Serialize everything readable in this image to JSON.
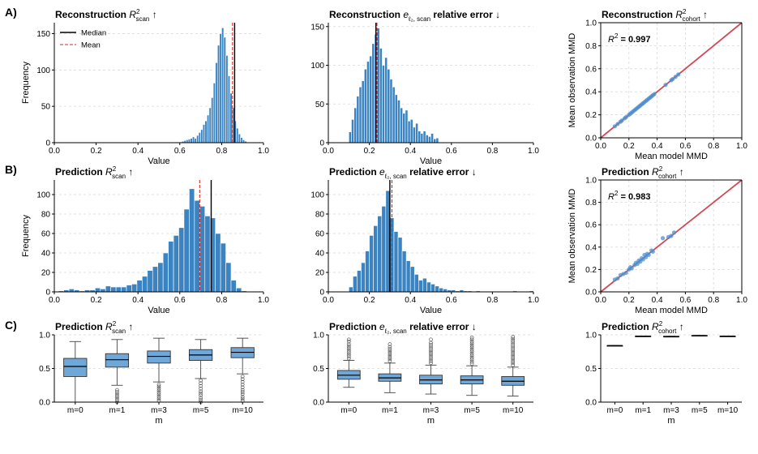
{
  "figure": {
    "row_labels": [
      "A)",
      "B)",
      "C)"
    ],
    "colors": {
      "bar": "#3b84c1",
      "bar_edge": "#ffffff",
      "median": "#000000",
      "mean": "#d62728",
      "fit": "#d04a57",
      "scatter": "#4c8fcf",
      "box": "#6fa8d8",
      "grid": "#d9d9d9"
    },
    "legend": {
      "median": "Median",
      "mean": "Mean"
    },
    "common": {
      "value_label": "Value",
      "frequency_label": "Frequency",
      "mmd_x_label": "Mean model MMD",
      "mmd_y_label": "Mean observation MMD",
      "m_label": "m"
    }
  },
  "chart_data": [
    {
      "id": "A1",
      "type": "bar",
      "panel": "histogram",
      "title": {
        "pre": "Reconstruction ",
        "sym": "R",
        "sup": "2",
        "sub": "scan",
        "post": "↑"
      },
      "xlabel": "Value",
      "ylabel": "Frequency",
      "xlim": [
        0,
        1
      ],
      "ylim": [
        0,
        165
      ],
      "xticks": [
        0,
        0.2,
        0.4,
        0.6,
        0.8,
        1.0
      ],
      "xtick_labels": [
        "0.0",
        "0.2",
        "0.4",
        "0.6",
        "0.8",
        "1.0"
      ],
      "yticks": [
        0,
        50,
        100,
        150
      ],
      "ytick_labels": [
        "0",
        "50",
        "100",
        "150"
      ],
      "bin_start": 0.58,
      "bin_width": 0.01,
      "values": [
        1,
        0,
        1,
        2,
        3,
        4,
        5,
        6,
        8,
        6,
        10,
        14,
        18,
        25,
        30,
        38,
        48,
        62,
        82,
        110,
        134,
        150,
        158,
        145,
        120,
        92,
        68,
        48,
        30,
        20,
        12,
        7,
        4,
        2
      ],
      "median": 0.862,
      "mean": 0.852,
      "legend": true,
      "grid": true
    },
    {
      "id": "A2",
      "type": "bar",
      "panel": "histogram",
      "title": {
        "pre": "Reconstruction ",
        "sym": "e",
        "sub": "ℓ₂, scan",
        "post": " relative error ↓"
      },
      "xlabel": "Value",
      "ylabel": "",
      "xlim": [
        0,
        1
      ],
      "ylim": [
        0,
        155
      ],
      "xticks": [
        0,
        0.2,
        0.4,
        0.6,
        0.8,
        1.0
      ],
      "xtick_labels": [
        "0.0",
        "0.2",
        "0.4",
        "0.6",
        "0.8",
        "1.0"
      ],
      "yticks": [
        0,
        50,
        100,
        150
      ],
      "ytick_labels": [
        "0",
        "50",
        "100",
        "150"
      ],
      "bin_start": 0.1,
      "bin_width": 0.0125,
      "values": [
        14,
        30,
        45,
        60,
        72,
        80,
        95,
        105,
        112,
        128,
        140,
        148,
        122,
        100,
        110,
        95,
        82,
        72,
        62,
        55,
        45,
        38,
        42,
        28,
        30,
        20,
        25,
        15,
        12,
        15,
        10,
        8,
        12,
        5,
        6
      ],
      "median": 0.232,
      "mean": 0.237,
      "legend": false,
      "grid": true
    },
    {
      "id": "A3",
      "type": "scatter",
      "panel": "scatter",
      "title": {
        "pre": "Reconstruction ",
        "sym": "R",
        "sup": "2",
        "sub": "cohort",
        "post": "↑"
      },
      "xlabel": "Mean model MMD",
      "ylabel": "Mean observation MMD",
      "xlim": [
        0,
        1
      ],
      "ylim": [
        0,
        1
      ],
      "xticks": [
        0,
        0.2,
        0.4,
        0.6,
        0.8,
        1.0
      ],
      "xtick_labels": [
        "0.0",
        "0.2",
        "0.4",
        "0.6",
        "0.8",
        "1.0"
      ],
      "yticks": [
        0,
        0.2,
        0.4,
        0.6,
        0.8,
        1.0
      ],
      "ytick_labels": [
        "0.0",
        "0.2",
        "0.4",
        "0.6",
        "0.8",
        "1.0"
      ],
      "annotation": {
        "label": "R",
        "sup": "2",
        "value": " = 0.997"
      },
      "fit": {
        "slope": 1.0,
        "intercept": 0.0
      },
      "x": [
        0.1,
        0.12,
        0.14,
        0.15,
        0.17,
        0.18,
        0.2,
        0.21,
        0.22,
        0.23,
        0.24,
        0.25,
        0.26,
        0.27,
        0.28,
        0.29,
        0.3,
        0.31,
        0.32,
        0.33,
        0.34,
        0.35,
        0.36,
        0.37,
        0.38,
        0.46,
        0.5,
        0.51,
        0.53,
        0.55
      ],
      "y": [
        0.1,
        0.12,
        0.14,
        0.15,
        0.17,
        0.18,
        0.2,
        0.21,
        0.22,
        0.23,
        0.24,
        0.25,
        0.26,
        0.27,
        0.28,
        0.29,
        0.3,
        0.31,
        0.32,
        0.33,
        0.34,
        0.35,
        0.36,
        0.37,
        0.38,
        0.46,
        0.5,
        0.51,
        0.53,
        0.55
      ],
      "grid": true
    },
    {
      "id": "B1",
      "type": "bar",
      "panel": "histogram",
      "title": {
        "pre": "Prediction ",
        "sym": "R",
        "sup": "2",
        "sub": "scan",
        "post": "↑"
      },
      "xlabel": "Value",
      "ylabel": "Frequency",
      "xlim": [
        0,
        1
      ],
      "ylim": [
        0,
        115
      ],
      "xticks": [
        0,
        0.2,
        0.4,
        0.6,
        0.8,
        1.0
      ],
      "xtick_labels": [
        "0.0",
        "0.2",
        "0.4",
        "0.6",
        "0.8",
        "1.0"
      ],
      "yticks": [
        0,
        20,
        40,
        60,
        80,
        100
      ],
      "ytick_labels": [
        "0",
        "20",
        "40",
        "60",
        "80",
        "100"
      ],
      "bin_start": 0.02,
      "bin_width": 0.025,
      "values": [
        1,
        2,
        3,
        2,
        1,
        2,
        2,
        4,
        3,
        6,
        5,
        5,
        5,
        7,
        8,
        12,
        16,
        22,
        26,
        30,
        40,
        52,
        58,
        66,
        85,
        106,
        94,
        88,
        78,
        76,
        60,
        50,
        30,
        12,
        4,
        1
      ],
      "median": 0.75,
      "mean": 0.695,
      "legend": false,
      "grid": true
    },
    {
      "id": "B2",
      "type": "bar",
      "panel": "histogram",
      "title": {
        "pre": "Prediction ",
        "sym": "e",
        "sub": "ℓ₂, scan",
        "post": " relative error ↓"
      },
      "xlabel": "Value",
      "ylabel": "",
      "xlim": [
        0,
        1
      ],
      "ylim": [
        0,
        115
      ],
      "xticks": [
        0,
        0.2,
        0.4,
        0.6,
        0.8,
        1.0
      ],
      "xtick_labels": [
        "0.0",
        "0.2",
        "0.4",
        "0.6",
        "0.8",
        "1.0"
      ],
      "yticks": [
        0,
        20,
        40,
        60,
        80,
        100
      ],
      "ytick_labels": [
        "0",
        "20",
        "40",
        "60",
        "80",
        "100"
      ],
      "bin_start": 0.1,
      "bin_width": 0.02,
      "values": [
        5,
        16,
        22,
        30,
        42,
        58,
        68,
        78,
        88,
        104,
        76,
        62,
        56,
        42,
        32,
        26,
        18,
        12,
        14,
        10,
        8,
        6,
        4,
        3,
        2,
        2,
        1,
        2,
        1,
        1,
        0,
        1,
        0,
        0,
        0,
        0,
        0,
        0,
        0,
        0,
        1,
        0,
        0,
        0,
        1
      ],
      "median": 0.3,
      "mean": 0.31,
      "legend": false,
      "grid": true
    },
    {
      "id": "B3",
      "type": "scatter",
      "panel": "scatter",
      "title": {
        "pre": "Prediction ",
        "sym": "R",
        "sup": "2",
        "sub": "cohort",
        "post": "↑"
      },
      "xlabel": "Mean model MMD",
      "ylabel": "Mean observation MMD",
      "xlim": [
        0,
        1
      ],
      "ylim": [
        0,
        1
      ],
      "xticks": [
        0,
        0.2,
        0.4,
        0.6,
        0.8,
        1.0
      ],
      "xtick_labels": [
        "0.0",
        "0.2",
        "0.4",
        "0.6",
        "0.8",
        "1.0"
      ],
      "yticks": [
        0,
        0.2,
        0.4,
        0.6,
        0.8,
        1.0
      ],
      "ytick_labels": [
        "0.0",
        "0.2",
        "0.4",
        "0.6",
        "0.8",
        "1.0"
      ],
      "annotation": {
        "label": "R",
        "sup": "2",
        "value": " = 0.983"
      },
      "fit": {
        "slope": 1.0,
        "intercept": 0.0
      },
      "x": [
        0.1,
        0.12,
        0.14,
        0.16,
        0.18,
        0.2,
        0.21,
        0.22,
        0.24,
        0.25,
        0.26,
        0.27,
        0.28,
        0.29,
        0.3,
        0.31,
        0.32,
        0.33,
        0.34,
        0.36,
        0.37,
        0.44,
        0.48,
        0.5,
        0.52
      ],
      "y": [
        0.11,
        0.12,
        0.15,
        0.16,
        0.17,
        0.2,
        0.22,
        0.21,
        0.24,
        0.26,
        0.25,
        0.28,
        0.27,
        0.3,
        0.29,
        0.33,
        0.31,
        0.34,
        0.33,
        0.37,
        0.36,
        0.48,
        0.49,
        0.5,
        0.53
      ],
      "grid": true
    },
    {
      "id": "C1",
      "type": "box",
      "panel": "box",
      "title": {
        "pre": "Prediction ",
        "sym": "R",
        "sup": "2",
        "sub": "scan",
        "post": "↑"
      },
      "xlabel": "m",
      "ylabel": "",
      "ylim": [
        0,
        1
      ],
      "yticks": [
        0,
        0.5,
        1.0
      ],
      "ytick_labels": [
        "0.0",
        "0.5",
        "1.0"
      ],
      "categories": [
        "m=0",
        "m=1",
        "m=3",
        "m=5",
        "m=10"
      ],
      "boxes": [
        {
          "whislo": 0.0,
          "q1": 0.38,
          "med": 0.53,
          "q3": 0.65,
          "whishi": 0.9,
          "outliers": []
        },
        {
          "whislo": 0.25,
          "q1": 0.52,
          "med": 0.63,
          "q3": 0.72,
          "whishi": 0.93,
          "outliers": [
            0.0,
            0.03,
            0.06,
            0.09,
            0.12,
            0.15,
            0.18
          ]
        },
        {
          "whislo": 0.3,
          "q1": 0.58,
          "med": 0.68,
          "q3": 0.76,
          "whishi": 0.95,
          "outliers": [
            0.02,
            0.05,
            0.08,
            0.11,
            0.14,
            0.17,
            0.2,
            0.23,
            0.26
          ]
        },
        {
          "whislo": 0.35,
          "q1": 0.62,
          "med": 0.7,
          "q3": 0.78,
          "whishi": 0.93,
          "outliers": [
            0.0,
            0.03,
            0.06,
            0.1,
            0.13,
            0.16,
            0.2,
            0.24,
            0.28,
            0.32
          ]
        },
        {
          "whislo": 0.42,
          "q1": 0.66,
          "med": 0.74,
          "q3": 0.81,
          "whishi": 0.95,
          "outliers": [
            0.02,
            0.05,
            0.08,
            0.12,
            0.15,
            0.18,
            0.22,
            0.26,
            0.3,
            0.34,
            0.38
          ]
        }
      ],
      "grid": true
    },
    {
      "id": "C2",
      "type": "box",
      "panel": "box",
      "title": {
        "pre": "Prediction ",
        "sym": "e",
        "sub": "ℓ₂, scan",
        "post": " relative error ↓"
      },
      "xlabel": "m",
      "ylabel": "",
      "ylim": [
        0,
        1
      ],
      "yticks": [
        0,
        0.5,
        1.0
      ],
      "ytick_labels": [
        "0.0",
        "0.5",
        "1.0"
      ],
      "categories": [
        "m=0",
        "m=1",
        "m=3",
        "m=5",
        "m=10"
      ],
      "boxes": [
        {
          "whislo": 0.22,
          "q1": 0.34,
          "med": 0.4,
          "q3": 0.47,
          "whishi": 0.62,
          "outliers": [
            0.65,
            0.68,
            0.71,
            0.74,
            0.77,
            0.8,
            0.83,
            0.86,
            0.9,
            0.93
          ]
        },
        {
          "whislo": 0.14,
          "q1": 0.31,
          "med": 0.36,
          "q3": 0.42,
          "whishi": 0.58,
          "outliers": [
            0.61,
            0.64,
            0.67,
            0.7,
            0.73,
            0.76,
            0.79,
            0.82,
            0.86
          ]
        },
        {
          "whislo": 0.12,
          "q1": 0.27,
          "med": 0.33,
          "q3": 0.4,
          "whishi": 0.55,
          "outliers": [
            0.58,
            0.61,
            0.64,
            0.67,
            0.7,
            0.73,
            0.76,
            0.79,
            0.82,
            0.85,
            0.88,
            0.93
          ]
        },
        {
          "whislo": 0.1,
          "q1": 0.27,
          "med": 0.33,
          "q3": 0.39,
          "whishi": 0.54,
          "outliers": [
            0.57,
            0.6,
            0.63,
            0.66,
            0.69,
            0.72,
            0.75,
            0.78,
            0.81,
            0.84,
            0.87,
            0.9,
            0.93,
            0.96
          ]
        },
        {
          "whislo": 0.09,
          "q1": 0.25,
          "med": 0.31,
          "q3": 0.38,
          "whishi": 0.52,
          "outliers": [
            0.55,
            0.58,
            0.61,
            0.64,
            0.67,
            0.7,
            0.73,
            0.76,
            0.79,
            0.82,
            0.85,
            0.88,
            0.91,
            0.94,
            0.97
          ]
        }
      ],
      "grid": true
    },
    {
      "id": "C3",
      "type": "box",
      "panel": "box",
      "title": {
        "pre": "Prediction ",
        "sym": "R",
        "sup": "2",
        "sub": "cohort",
        "post": "↑"
      },
      "xlabel": "m",
      "ylabel": "",
      "ylim": [
        0,
        1
      ],
      "yticks": [
        0,
        0.5,
        1.0
      ],
      "ytick_labels": [
        "0.0",
        "0.5",
        "1.0"
      ],
      "categories": [
        "m=0",
        "m=1",
        "m=3",
        "m=5",
        "m=10"
      ],
      "boxes": [
        {
          "whislo": 0.84,
          "q1": 0.84,
          "med": 0.84,
          "q3": 0.84,
          "whishi": 0.84,
          "outliers": []
        },
        {
          "whislo": 0.98,
          "q1": 0.98,
          "med": 0.98,
          "q3": 0.98,
          "whishi": 0.98,
          "outliers": []
        },
        {
          "whislo": 0.97,
          "q1": 0.97,
          "med": 0.97,
          "q3": 0.98,
          "whishi": 0.98,
          "outliers": []
        },
        {
          "whislo": 0.99,
          "q1": 0.99,
          "med": 0.99,
          "q3": 0.99,
          "whishi": 0.99,
          "outliers": []
        },
        {
          "whislo": 0.98,
          "q1": 0.98,
          "med": 0.98,
          "q3": 0.98,
          "whishi": 0.98,
          "outliers": []
        }
      ],
      "grid": true
    }
  ]
}
